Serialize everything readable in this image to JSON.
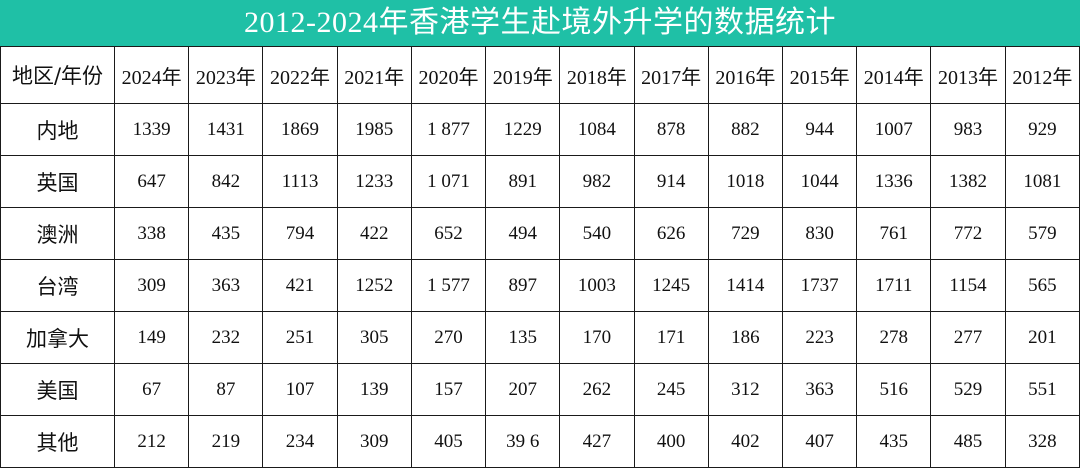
{
  "title": "2012-2024年香港学生赴境外升学的数据统计",
  "colors": {
    "title_bg": "#1fc0a6",
    "title_text": "#ffffff",
    "grid": "#1a1a1a",
    "text": "#111111"
  },
  "table": {
    "corner_label": "地区/年份",
    "columns": [
      "2024年",
      "2023年",
      "2022年",
      "2021年",
      "2020年",
      "2019年",
      "2018年",
      "2017年",
      "2016年",
      "2015年",
      "2014年",
      "2013年",
      "2012年"
    ],
    "rows": [
      {
        "region": "内地",
        "values": [
          "1339",
          "1431",
          "1869",
          "1985",
          "1 877",
          "1229",
          "1084",
          "878",
          "882",
          "944",
          "1007",
          "983",
          "929"
        ]
      },
      {
        "region": "英国",
        "values": [
          "647",
          "842",
          "1113",
          "1233",
          "1 071",
          "891",
          "982",
          "914",
          "1018",
          "1044",
          "1336",
          "1382",
          "1081"
        ]
      },
      {
        "region": "澳洲",
        "values": [
          "338",
          "435",
          "794",
          "422",
          "652",
          "494",
          "540",
          "626",
          "729",
          "830",
          "761",
          "772",
          "579"
        ]
      },
      {
        "region": "台湾",
        "values": [
          "309",
          "363",
          "421",
          "1252",
          "1 577",
          "897",
          "1003",
          "1245",
          "1414",
          "1737",
          "1711",
          "1154",
          "565"
        ]
      },
      {
        "region": "加拿大",
        "values": [
          "149",
          "232",
          "251",
          "305",
          "270",
          "135",
          "170",
          "171",
          "186",
          "223",
          "278",
          "277",
          "201"
        ]
      },
      {
        "region": "美国",
        "values": [
          "67",
          "87",
          "107",
          "139",
          "157",
          "207",
          "262",
          "245",
          "312",
          "363",
          "516",
          "529",
          "551"
        ]
      },
      {
        "region": "其他",
        "values": [
          "212",
          "219",
          "234",
          "309",
          "405",
          "39 6",
          "427",
          "400",
          "402",
          "407",
          "435",
          "485",
          "328"
        ]
      }
    ]
  }
}
